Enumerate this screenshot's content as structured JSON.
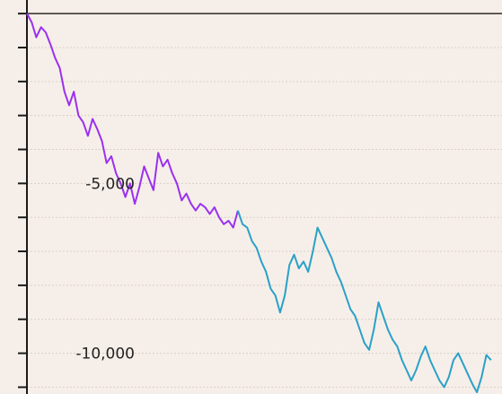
{
  "chart_data": {
    "type": "line",
    "title": "",
    "xlabel": "",
    "ylabel": "",
    "ylim": [
      -11200,
      400
    ],
    "grid": true,
    "y_ticks": [
      0,
      -1000,
      -2000,
      -3000,
      -4000,
      -5000,
      -6000,
      -7000,
      -8000,
      -9000,
      -10000,
      -11000
    ],
    "y_tick_labels": [
      {
        "value": -5000,
        "label": "-5,000"
      },
      {
        "value": -10000,
        "label": "-10,000"
      }
    ],
    "series": [
      {
        "color": "#9b30ef",
        "x": [
          0,
          1,
          2,
          3,
          4,
          5,
          6,
          7,
          8,
          9,
          10,
          11,
          12,
          13,
          14,
          15,
          16,
          17,
          18,
          19,
          20,
          21,
          22,
          23,
          24,
          25,
          26,
          27,
          28,
          29,
          30,
          31,
          32,
          33,
          34,
          35,
          36,
          37,
          38,
          39,
          40,
          41,
          42,
          43,
          44,
          45
        ],
        "y": [
          0,
          -250,
          -700,
          -400,
          -550,
          -900,
          -1300,
          -1600,
          -2300,
          -2700,
          -2300,
          -3000,
          -3200,
          -3600,
          -3100,
          -3400,
          -3750,
          -4400,
          -4200,
          -4700,
          -5000,
          -5400,
          -5000,
          -5600,
          -5100,
          -4500,
          -4850,
          -5200,
          -4100,
          -4500,
          -4300,
          -4700,
          -5000,
          -5500,
          -5300,
          -5600,
          -5800,
          -5600,
          -5700,
          -5900,
          -5700,
          -6000,
          -6200,
          -6100,
          -6300,
          -5800
        ]
      },
      {
        "color": "#2aa1c8",
        "x": [
          45,
          46,
          47,
          48,
          49,
          50,
          51,
          52,
          53,
          54,
          55,
          56,
          57,
          58,
          59,
          60,
          61,
          62,
          63,
          64,
          65,
          66,
          67,
          68,
          69,
          70,
          71,
          72,
          73,
          74,
          75,
          76,
          77,
          78,
          79,
          80,
          81,
          82,
          83,
          84,
          85,
          86,
          87,
          88,
          89,
          90,
          91,
          92,
          93,
          94,
          95,
          96,
          97,
          98,
          99
        ],
        "y": [
          -5800,
          -6200,
          -6300,
          -6700,
          -6900,
          -7300,
          -7600,
          -8100,
          -8300,
          -8800,
          -8300,
          -7400,
          -7100,
          -7500,
          -7300,
          -7600,
          -7000,
          -6300,
          -6600,
          -6900,
          -7200,
          -7600,
          -7900,
          -8300,
          -8700,
          -8900,
          -9300,
          -9700,
          -9900,
          -9300,
          -8500,
          -8900,
          -9300,
          -9600,
          -9800,
          -10200,
          -10500,
          -10800,
          -10500,
          -10100,
          -9800,
          -10200,
          -10500,
          -10800,
          -11000,
          -10700,
          -10200,
          -10000,
          -10300,
          -10600,
          -10900,
          -11150,
          -10700,
          -10050,
          -10200
        ]
      }
    ]
  }
}
